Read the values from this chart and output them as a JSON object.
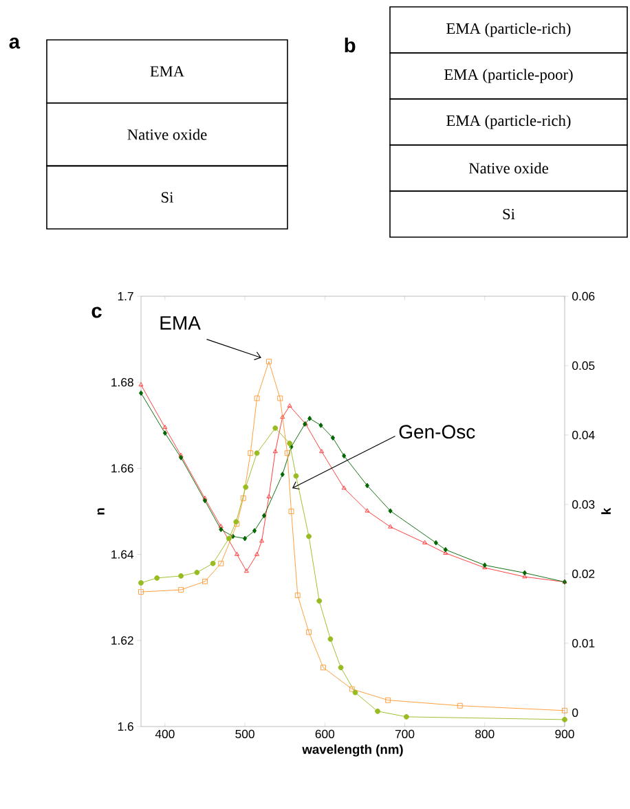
{
  "chart_data": [
    {
      "type": "other",
      "title": "a",
      "categories": [
        "EMA",
        "Native oxide",
        "Si"
      ]
    },
    {
      "type": "other",
      "title": "b",
      "categories": [
        "EMA (particle-rich)",
        "EMA (particle-poor)",
        "EMA (particle-rich)",
        "Native oxide",
        "Si"
      ]
    },
    {
      "type": "line",
      "title": "c",
      "xlabel": "wavelength (nm)",
      "ylabel": "n",
      "y2label": "k",
      "xlim": [
        370,
        900
      ],
      "xticks": [
        400,
        500,
        600,
        700,
        800,
        900
      ],
      "ylim": [
        1.6,
        1.7
      ],
      "yticks": [
        1.6,
        1.62,
        1.64,
        1.66,
        1.68,
        1.7
      ],
      "y2lim": [
        -0.002,
        0.06
      ],
      "y2ticks": [
        0,
        0.01,
        0.02,
        0.03,
        0.04,
        0.05,
        0.06
      ],
      "annotations": [
        "EMA",
        "Gen-Osc"
      ],
      "series": [
        {
          "color": "#ff3333",
          "marker": "triangle",
          "x": [
            370,
            400,
            420,
            450,
            470,
            490,
            502,
            515,
            521,
            530,
            538,
            547,
            556,
            576,
            596,
            624,
            653,
            682,
            725,
            751,
            800,
            850,
            900
          ],
          "values": [
            1.6794,
            1.6695,
            1.663,
            1.653,
            1.6465,
            1.64,
            1.6361,
            1.64,
            1.6431,
            1.6534,
            1.6639,
            1.6719,
            1.6745,
            1.6703,
            1.6639,
            1.6554,
            1.6501,
            1.6464,
            1.6427,
            1.6403,
            1.6369,
            1.6348,
            1.6336
          ]
        },
        {
          "color": "#006600",
          "marker": "diamond",
          "x": [
            370,
            400,
            420,
            450,
            470,
            485,
            500,
            512,
            524,
            547,
            558,
            575,
            581,
            595,
            610,
            624,
            653,
            682,
            739,
            751,
            800,
            850,
            900
          ],
          "values": [
            1.6775,
            1.6682,
            1.6625,
            1.6525,
            1.6458,
            1.6442,
            1.6437,
            1.6455,
            1.649,
            1.6586,
            1.665,
            1.6703,
            1.6716,
            1.67,
            1.6671,
            1.6629,
            1.656,
            1.6501,
            1.6427,
            1.6411,
            1.6375,
            1.6357,
            1.6336
          ]
        },
        {
          "color": "#ff9933",
          "marker": "square",
          "axis": "y2",
          "x": [
            370,
            420,
            450,
            470,
            490,
            498,
            507,
            515,
            530,
            544,
            553,
            558,
            566,
            580,
            598,
            634,
            679,
            769,
            900
          ],
          "values": [
            0.0174,
            0.0177,
            0.0189,
            0.0215,
            0.0272,
            0.0309,
            0.0374,
            0.0453,
            0.0506,
            0.0453,
            0.0374,
            0.029,
            0.0169,
            0.0116,
            0.0065,
            0.0034,
            0.0018,
            0.001,
            0.0003
          ]
        },
        {
          "color": "#99bb22",
          "marker": "circle",
          "axis": "y2",
          "x": [
            370,
            390,
            420,
            440,
            460,
            480,
            489,
            501,
            515,
            538,
            556,
            564,
            580,
            593,
            607,
            620,
            638,
            666,
            702,
            900
          ],
          "values": [
            0.0187,
            0.0194,
            0.0197,
            0.0202,
            0.0215,
            0.0251,
            0.0275,
            0.0325,
            0.0374,
            0.041,
            0.0388,
            0.0341,
            0.0254,
            0.0161,
            0.0106,
            0.0065,
            0.0029,
            0.0002,
            -0.0006,
            -0.001
          ]
        }
      ]
    }
  ]
}
